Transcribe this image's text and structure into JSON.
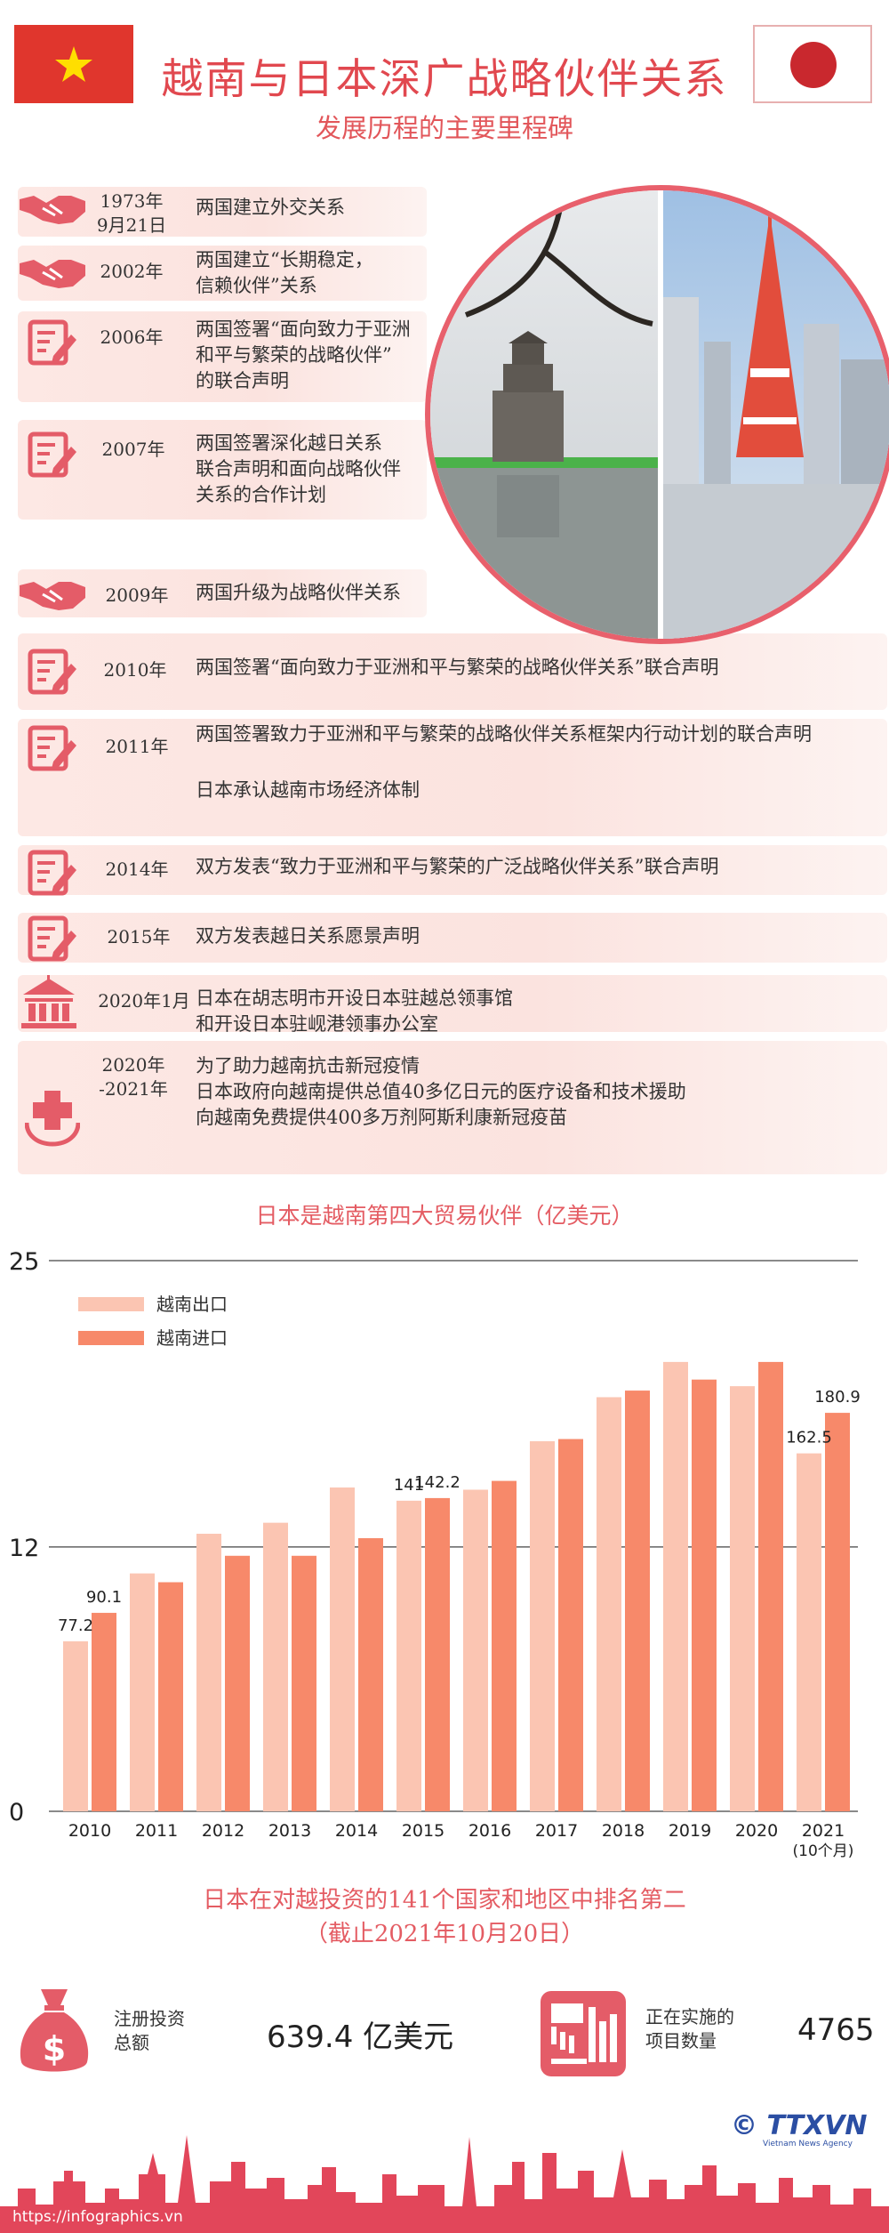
{
  "header": {
    "title": "越南与日本深广战略伙伴关系",
    "subtitle": "发展历程的主要里程碑"
  },
  "milestones": [
    {
      "year": "1973年\n9月21日",
      "text": "两国建立外交关系",
      "icon": "handshake-icon"
    },
    {
      "year": "2002年",
      "text": "两国建立“长期稳定，\n信赖伙伴”关系",
      "icon": "handshake-icon"
    },
    {
      "year": "2006年",
      "text": "两国签署“面向致力于亚洲\n和平与繁荣的战略伙伴”\n的联合声明",
      "icon": "document-sign-icon"
    },
    {
      "year": "2007年",
      "text": "两国签署深化越日关系\n联合声明和面向战略伙伴\n关系的合作计划",
      "icon": "document-sign-icon"
    },
    {
      "year": "2009年",
      "text": "两国升级为战略伙伴关系",
      "icon": "handshake-icon"
    },
    {
      "year": "2010年",
      "text": "两国签署“面向致力于亚洲和平与繁荣的战略伙伴关系”联合声明",
      "icon": "document-sign-icon"
    },
    {
      "year": "2011年",
      "text": "两国签署致力于亚洲和平与繁荣的战略伙伴关系框架内行动计划的联合声明\n\n日本承认越南市场经济体制",
      "icon": "document-sign-icon"
    },
    {
      "year": "2014年",
      "text": "双方发表“致力于亚洲和平与繁荣的广泛战略伙伴关系”联合声明",
      "icon": "document-sign-icon"
    },
    {
      "year": "2015年",
      "text": "双方发表越日关系愿景声明",
      "icon": "document-sign-icon"
    },
    {
      "year": "2020年1月",
      "text": "日本在胡志明市开设日本驻越总领事馆\n和开设日本驻岘港领事办公室",
      "icon": "consulate-building-icon"
    },
    {
      "year": "2020年\n-2021年",
      "text": "为了助力越南抗击新冠疫情\n日本政府向越南提供总值40多亿日元的医疗设备和技术援助\n向越南免费提供400多万剂阿斯利康新冠疫苗",
      "icon": "medical-aid-icon"
    }
  ],
  "chart_data": {
    "type": "bar",
    "title": "日本是越南第四大贸易伙伴（亿美元）",
    "categories": [
      "2010",
      "2011",
      "2012",
      "2013",
      "2014",
      "2015",
      "2016",
      "2017",
      "2018",
      "2019",
      "2020",
      "2021\n(10个月)"
    ],
    "series": [
      {
        "name": "越南出口",
        "color": "#fbc5b2",
        "values": [
          7.72,
          10.8,
          12.6,
          13.1,
          14.7,
          14.1,
          14.6,
          16.8,
          18.8,
          20.4,
          19.3,
          16.25
        ]
      },
      {
        "name": "越南进口",
        "color": "#f7896a",
        "values": [
          9.01,
          10.4,
          11.6,
          11.6,
          12.4,
          14.22,
          15.0,
          16.9,
          19.1,
          19.6,
          20.4,
          18.09
        ]
      }
    ],
    "data_labels": [
      {
        "category": "2010",
        "series": "越南出口",
        "text": "77.2"
      },
      {
        "category": "2010",
        "series": "越南进口",
        "text": "90.1"
      },
      {
        "category": "2015",
        "series": "越南出口",
        "text": "141"
      },
      {
        "category": "2015",
        "series": "越南进口",
        "text": "142.2"
      },
      {
        "category": "2021\n(10个月)",
        "series": "越南出口",
        "text": "162.5"
      },
      {
        "category": "2021\n(10个月)",
        "series": "越南进口",
        "text": "180.9"
      }
    ],
    "y_ticks": [
      "0",
      "12",
      "25"
    ],
    "ylim": [
      0,
      25
    ],
    "legend_position": "top-left",
    "grid": "horizontal lines at 12 and 25"
  },
  "investment": {
    "title": "日本在对越投资的141个国家和地区中排名第二\n（截止2021年10月20日）",
    "registered_label": "注册投资\n总额",
    "registered_value": "639.4 亿美元",
    "projects_label": "正在实施的\n项目数量",
    "projects_value": "4765"
  },
  "footer": {
    "url": "https://infographics.vn",
    "logo": "© TTXVN",
    "logo_sub": "Vietnam News Agency"
  },
  "colors": {
    "accent": "#e1484f",
    "icon": "#e45c68",
    "export": "#fbc5b2",
    "import": "#f7896a",
    "row_background": "#fce5e1",
    "skyline": "#e2465a"
  }
}
